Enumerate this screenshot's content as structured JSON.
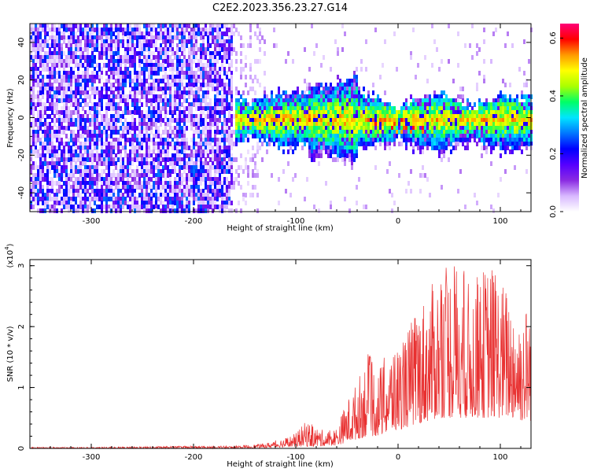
{
  "title": "C2E2.2023.356.23.27.G14",
  "colors": {
    "signal": "#e83030",
    "axis": "#000000"
  },
  "chart_data": [
    {
      "type": "heatmap",
      "name": "spectrogram",
      "xlabel": "Height of straight line (km)",
      "ylabel": "Frequency (Hz)",
      "xlim": [
        -360,
        130
      ],
      "ylim": [
        -50,
        50
      ],
      "x_ticks": [
        -300,
        -200,
        -100,
        0,
        100
      ],
      "y_ticks": [
        -40,
        -20,
        0,
        20,
        40
      ],
      "colorbar": {
        "label": "Normalized spectral amplitude",
        "range": [
          0.0,
          0.65
        ],
        "ticks": [
          0.0,
          0.2,
          0.4,
          0.6
        ],
        "tick_labels": [
          "0.0",
          "0.2",
          "0.4",
          "0.6"
        ],
        "colormap": [
          "#ffffff",
          "#d8b8ff",
          "#8a2be2",
          "#5500ff",
          "#0000ff",
          "#0077ff",
          "#00e5ff",
          "#00ff66",
          "#aaff00",
          "#ffff00",
          "#ff9900",
          "#ff0000",
          "#ff0077"
        ]
      },
      "regions": [
        {
          "x_from": -360,
          "x_to": -163,
          "freq_half_width": 50,
          "description_level": 0.1
        },
        {
          "x_from": -163,
          "x_to": -135,
          "freq_half_width": 50,
          "description_level": 0.03
        },
        {
          "x_from": -160,
          "x_to": 130,
          "freq_center": 0,
          "freq_half_width": 12,
          "description_level": 0.3
        }
      ]
    },
    {
      "type": "line",
      "name": "snr",
      "xlabel": "Height of straight line (km)",
      "ylabel": "SNR (10 * v/v)",
      "y_scale_label": "(x10",
      "y_scale_exp": "4",
      "y_scale_close": ")",
      "xlim": [
        -360,
        130
      ],
      "ylim": [
        0,
        3.1
      ],
      "x_ticks": [
        -300,
        -200,
        -100,
        0,
        100
      ],
      "y_ticks": [
        0,
        1,
        2,
        3
      ],
      "envelope": {
        "x": [
          -360,
          -300,
          -250,
          -200,
          -160,
          -130,
          -110,
          -100,
          -90,
          -80,
          -70,
          -60,
          -50,
          -40,
          -30,
          -20,
          -10,
          0,
          10,
          20,
          30,
          40,
          50,
          60,
          70,
          80,
          90,
          100,
          110,
          120,
          130
        ],
        "peak": [
          0.02,
          0.02,
          0.03,
          0.04,
          0.04,
          0.08,
          0.18,
          0.25,
          0.45,
          0.35,
          0.28,
          0.35,
          0.8,
          1.1,
          1.6,
          1.3,
          1.6,
          1.7,
          2.0,
          2.4,
          2.6,
          2.9,
          3.1,
          3.1,
          2.7,
          2.9,
          3.1,
          2.8,
          2.6,
          2.3,
          2.5
        ],
        "floor": [
          0.0,
          0.0,
          0.0,
          0.0,
          0.0,
          0.01,
          0.02,
          0.03,
          0.03,
          0.03,
          0.04,
          0.05,
          0.1,
          0.15,
          0.2,
          0.2,
          0.25,
          0.3,
          0.35,
          0.4,
          0.45,
          0.5,
          0.5,
          0.5,
          0.5,
          0.5,
          0.5,
          0.5,
          0.5,
          0.45,
          0.45
        ]
      }
    }
  ]
}
